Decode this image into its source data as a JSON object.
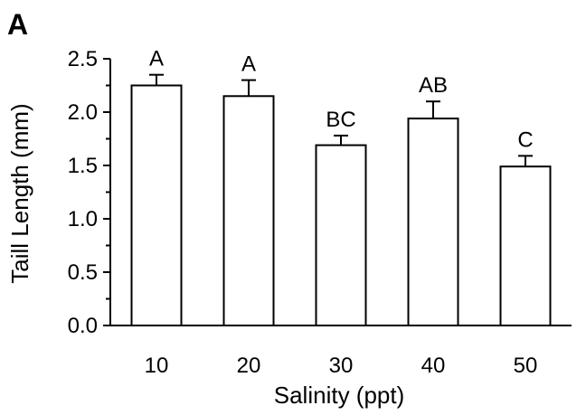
{
  "panel_label": "A",
  "chart_data": {
    "type": "bar",
    "title": "",
    "xlabel": "Salinity (ppt)",
    "ylabel": "Taill Length (mm)",
    "categories": [
      "10",
      "20",
      "30",
      "40",
      "50"
    ],
    "values": [
      2.25,
      2.15,
      1.69,
      1.94,
      1.49
    ],
    "errors": [
      0.1,
      0.15,
      0.09,
      0.16,
      0.1
    ],
    "significance_labels": [
      "A",
      "A",
      "BC",
      "AB",
      "C"
    ],
    "ylim": [
      0,
      2.5
    ],
    "yticks": [
      0.0,
      0.5,
      1.0,
      1.5,
      2.0,
      2.5
    ],
    "ytick_labels": [
      "0.0",
      "0.5",
      "1.0",
      "1.5",
      "2.0",
      "2.5"
    ],
    "minor_yticks": [
      0.25,
      0.75,
      1.25,
      1.75,
      2.25
    ],
    "grid": false,
    "colors": {
      "bar_fill": "#ffffff",
      "bar_stroke": "#000000",
      "axis": "#000000"
    }
  }
}
